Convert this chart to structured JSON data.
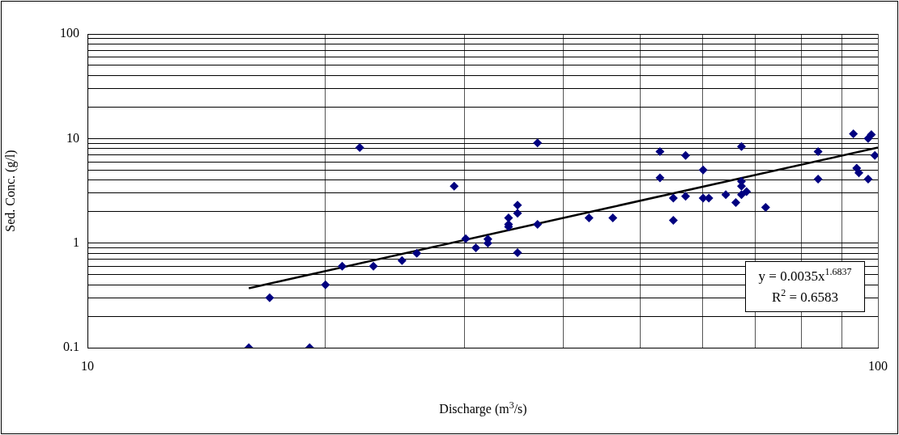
{
  "chart_data": {
    "type": "scatter",
    "xlabel": "Discharge (m$^{3}$/s)",
    "ylabel": "Sed. Conc. (g/l)",
    "log": "xy",
    "grid": true,
    "legend": false,
    "marker": "diamond",
    "xlim": [
      10,
      100
    ],
    "xticks": [
      10,
      {
        "value": 20,
        "label": null
      },
      {
        "value": 30,
        "label": null
      },
      {
        "value": 40,
        "label": null
      },
      {
        "value": 50,
        "label": null
      },
      {
        "value": 60,
        "label": null
      },
      {
        "value": 70,
        "label": null
      },
      {
        "value": 80,
        "label": null
      },
      {
        "value": 90,
        "label": null
      },
      100
    ],
    "ylim": [
      0.1,
      100
    ],
    "yticks": [
      0.1,
      {
        "value": 0.2,
        "label": null
      },
      {
        "value": 0.3,
        "label": null
      },
      {
        "value": 0.4,
        "label": null
      },
      {
        "value": 0.5,
        "label": null
      },
      {
        "value": 0.6,
        "label": null
      },
      {
        "value": 0.7,
        "label": null
      },
      {
        "value": 0.8,
        "label": null
      },
      {
        "value": 0.9,
        "label": null
      },
      1,
      {
        "value": 2,
        "label": null
      },
      {
        "value": 3,
        "label": null
      },
      {
        "value": 4,
        "label": null
      },
      {
        "value": 5,
        "label": null
      },
      {
        "value": 6,
        "label": null
      },
      {
        "value": 7,
        "label": null
      },
      {
        "value": 8,
        "label": null
      },
      {
        "value": 9,
        "label": null
      },
      10,
      {
        "value": 20,
        "label": null
      },
      {
        "value": 30,
        "label": null
      },
      {
        "value": 40,
        "label": null
      },
      {
        "value": 50,
        "label": null
      },
      {
        "value": 60,
        "label": null
      },
      {
        "value": 70,
        "label": null
      },
      {
        "value": 80,
        "label": null
      },
      {
        "value": 90,
        "label": null
      },
      100
    ],
    "series": [
      {
        "color": "#000080",
        "x": [
          16,
          17,
          19.1,
          20,
          21,
          22.1,
          23,
          25,
          26.1,
          29.1,
          30.1,
          31,
          32.1,
          32.1,
          34.1,
          34.1,
          34.1,
          35,
          35,
          35,
          37.1,
          37.1,
          43.1,
          46.2,
          53,
          53,
          55.1,
          55.1,
          57.1,
          57.1,
          60.1,
          60.1,
          61.1,
          64.2,
          66.1,
          67.2,
          67.2,
          67.2,
          67.2,
          68.2,
          72.1,
          84,
          84,
          93.1,
          94,
          94.6,
          97.2,
          97.2,
          98.1,
          99.1
        ],
        "values": [
          0.1,
          0.3,
          0.1,
          0.4,
          0.6,
          8.2,
          0.6,
          0.68,
          0.8,
          3.5,
          1.1,
          0.9,
          1.09,
          1,
          1.74,
          1.51,
          1.43,
          2.31,
          1.93,
          0.81,
          9.1,
          1.51,
          1.74,
          1.74,
          7.5,
          4.2,
          2.7,
          1.65,
          6.9,
          2.8,
          5,
          2.7,
          2.7,
          2.9,
          2.44,
          8.4,
          3.9,
          3.5,
          2.9,
          3.1,
          2.2,
          7.5,
          4.1,
          11.1,
          5.2,
          4.7,
          4.1,
          10,
          10.9,
          6.9
        ]
      },
      {
        "type": "line",
        "marker": "none",
        "color": "#000000",
        "x": [
          16,
          100
        ],
        "values": [
          0.37,
          8.2
        ]
      }
    ],
    "annotations": [
      "y = 0.0035x$^{1.6837}$",
      "R$^{2}$ = 0.6583"
    ]
  }
}
